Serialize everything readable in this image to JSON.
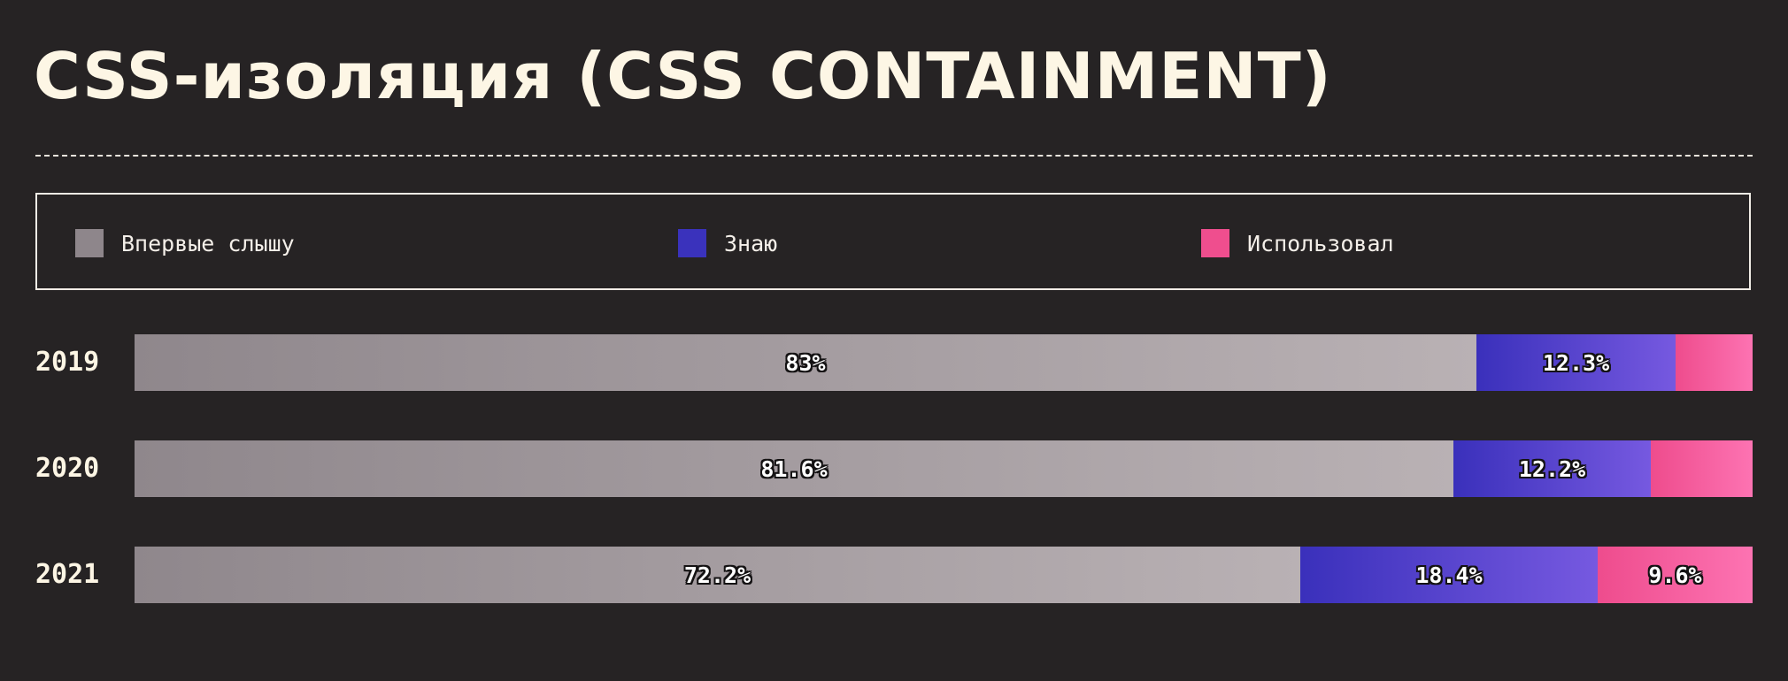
{
  "title": "CSS-изоляция (CSS CONTAINMENT)",
  "legend": [
    {
      "label": "Впервые слышу",
      "color": "#8e868b"
    },
    {
      "label": "Знаю",
      "color": "#3a32bc"
    },
    {
      "label": "Использовал",
      "color": "#ef4e8e"
    }
  ],
  "chart_data": {
    "type": "bar",
    "orientation": "horizontal",
    "stacked": true,
    "normalized": true,
    "title": "CSS-изоляция (CSS CONTAINMENT)",
    "categories": [
      "2019",
      "2020",
      "2021"
    ],
    "series": [
      {
        "name": "Впервые слышу",
        "values": [
          83,
          81.6,
          72.2
        ],
        "labels": [
          "83%",
          "81.6%",
          "72.2%"
        ],
        "gradient": [
          "#8f878c",
          "#b9b1b4"
        ]
      },
      {
        "name": "Знаю",
        "values": [
          12.3,
          12.2,
          18.4
        ],
        "labels": [
          "12.3%",
          "12.2%",
          "18.4%"
        ],
        "gradient": [
          "#3a30bb",
          "#7659e0"
        ]
      },
      {
        "name": "Использовал",
        "values": [
          4.8,
          6.3,
          9.6
        ],
        "labels": [
          "",
          "",
          "9.6%"
        ],
        "gradient": [
          "#ee4c8d",
          "#fd73b2"
        ]
      }
    ],
    "legend_position": "top",
    "xlim": [
      0,
      100
    ]
  }
}
